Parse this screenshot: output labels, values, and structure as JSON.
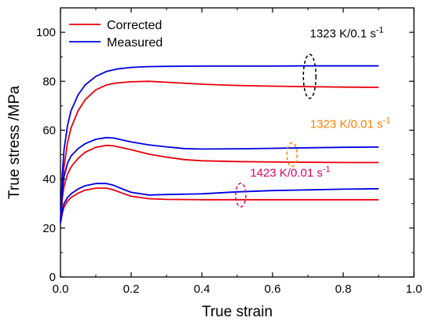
{
  "chart_data": {
    "type": "line",
    "title": "",
    "xlabel": "True strain",
    "ylabel": "True stress /MPa",
    "xlim": [
      0.0,
      1.0
    ],
    "ylim": [
      0,
      110
    ],
    "xticks": [
      0.0,
      0.2,
      0.4,
      0.6,
      0.8,
      1.0
    ],
    "xtick_labels": [
      "0.0",
      "0.2",
      "0.4",
      "0.6",
      "0.8",
      "1.0"
    ],
    "yticks": [
      0,
      20,
      40,
      60,
      80,
      100
    ],
    "ytick_labels": [
      "0",
      "20",
      "40",
      "60",
      "80",
      "100"
    ],
    "grid": false,
    "legend_position": "top-left",
    "legend": [
      {
        "label": "Corrected",
        "color": "#e8000b"
      },
      {
        "label": "Measured",
        "color": "#0000e0"
      }
    ],
    "series": [
      {
        "name": "Corrected",
        "condition": "1323 K/0.1 s-1",
        "color": "#e8000b",
        "x": [
          0.0,
          0.005,
          0.01,
          0.02,
          0.03,
          0.05,
          0.07,
          0.1,
          0.13,
          0.16,
          0.2,
          0.25,
          0.3,
          0.4,
          0.5,
          0.6,
          0.7,
          0.8,
          0.9
        ],
        "y": [
          22,
          36,
          45,
          55,
          61,
          68,
          72.5,
          76.5,
          78.5,
          79.3,
          79.8,
          80,
          79.6,
          78.8,
          78.3,
          78,
          77.8,
          77.6,
          77.5
        ]
      },
      {
        "name": "Measured",
        "condition": "1323 K/0.1 s-1",
        "color": "#0000e0",
        "x": [
          0.0,
          0.005,
          0.01,
          0.02,
          0.03,
          0.05,
          0.07,
          0.1,
          0.13,
          0.16,
          0.2,
          0.25,
          0.3,
          0.4,
          0.5,
          0.6,
          0.7,
          0.8,
          0.9
        ],
        "y": [
          22,
          42,
          52,
          62,
          68,
          74.5,
          78.5,
          82,
          84,
          85,
          85.7,
          86,
          86.1,
          86.2,
          86.2,
          86.2,
          86.3,
          86.3,
          86.3
        ]
      },
      {
        "name": "Corrected",
        "condition": "1323 K/0.01 s-1",
        "color": "#e8000b",
        "x": [
          0.0,
          0.005,
          0.01,
          0.02,
          0.03,
          0.05,
          0.07,
          0.1,
          0.13,
          0.15,
          0.2,
          0.25,
          0.3,
          0.35,
          0.4,
          0.5,
          0.6,
          0.7,
          0.8,
          0.9
        ],
        "y": [
          22,
          32,
          37,
          42,
          45,
          48.5,
          51,
          53,
          53.8,
          53.6,
          52,
          50.2,
          49,
          48,
          47.5,
          47.2,
          47,
          46.9,
          46.8,
          46.8
        ]
      },
      {
        "name": "Measured",
        "condition": "1323 K/0.01 s-1",
        "color": "#0000e0",
        "x": [
          0.0,
          0.005,
          0.01,
          0.02,
          0.03,
          0.05,
          0.07,
          0.1,
          0.13,
          0.15,
          0.2,
          0.25,
          0.3,
          0.35,
          0.4,
          0.5,
          0.6,
          0.7,
          0.8,
          0.9
        ],
        "y": [
          22,
          35,
          41,
          46.5,
          49.5,
          52.5,
          54.5,
          56.3,
          57,
          56.8,
          55.2,
          54,
          53.2,
          52.5,
          52.3,
          52.4,
          52.6,
          52.8,
          53,
          53.1
        ]
      },
      {
        "name": "Corrected",
        "condition": "1423 K/0.01 s-1",
        "color": "#e8000b",
        "x": [
          0.0,
          0.005,
          0.01,
          0.02,
          0.03,
          0.05,
          0.07,
          0.1,
          0.13,
          0.15,
          0.18,
          0.2,
          0.25,
          0.3,
          0.4,
          0.5,
          0.6,
          0.7,
          0.8,
          0.9
        ],
        "y": [
          22,
          26,
          28.5,
          31,
          32.5,
          34.3,
          35.5,
          36.3,
          36.3,
          35.6,
          34,
          33,
          32,
          31.7,
          31.6,
          31.6,
          31.6,
          31.6,
          31.6,
          31.6
        ]
      },
      {
        "name": "Measured",
        "condition": "1423 K/0.01 s-1",
        "color": "#0000e0",
        "x": [
          0.0,
          0.005,
          0.01,
          0.02,
          0.03,
          0.05,
          0.07,
          0.1,
          0.13,
          0.15,
          0.18,
          0.2,
          0.25,
          0.3,
          0.4,
          0.5,
          0.6,
          0.7,
          0.8,
          0.9
        ],
        "y": [
          22,
          27,
          30,
          32.5,
          34,
          36,
          37.3,
          38.2,
          38.2,
          37.5,
          35.7,
          34.6,
          33.5,
          33.7,
          34,
          34.8,
          35.3,
          35.6,
          35.9,
          36.1
        ]
      }
    ],
    "annotations": [
      {
        "text": "1323 K/0.1 s",
        "superscript": "-1",
        "color": "#000000",
        "label_x": 0.81,
        "label_y": 98,
        "ellipse_x": 0.705,
        "ellipse_y": 82,
        "ellipse_color": "#000000"
      },
      {
        "text": "1323 K/0.01 s",
        "superscript": "-1",
        "color": "#ff8000",
        "label_x": 0.82,
        "label_y": 61,
        "ellipse_x": 0.655,
        "ellipse_y": 50,
        "ellipse_color": "#ff8000"
      },
      {
        "text": "1423 K/0.01 s",
        "superscript": "-1",
        "color": "#e0006e",
        "label_x": 0.65,
        "label_y": 41,
        "ellipse_x": 0.51,
        "ellipse_y": 33.5,
        "ellipse_color": "#e0006e"
      }
    ]
  }
}
